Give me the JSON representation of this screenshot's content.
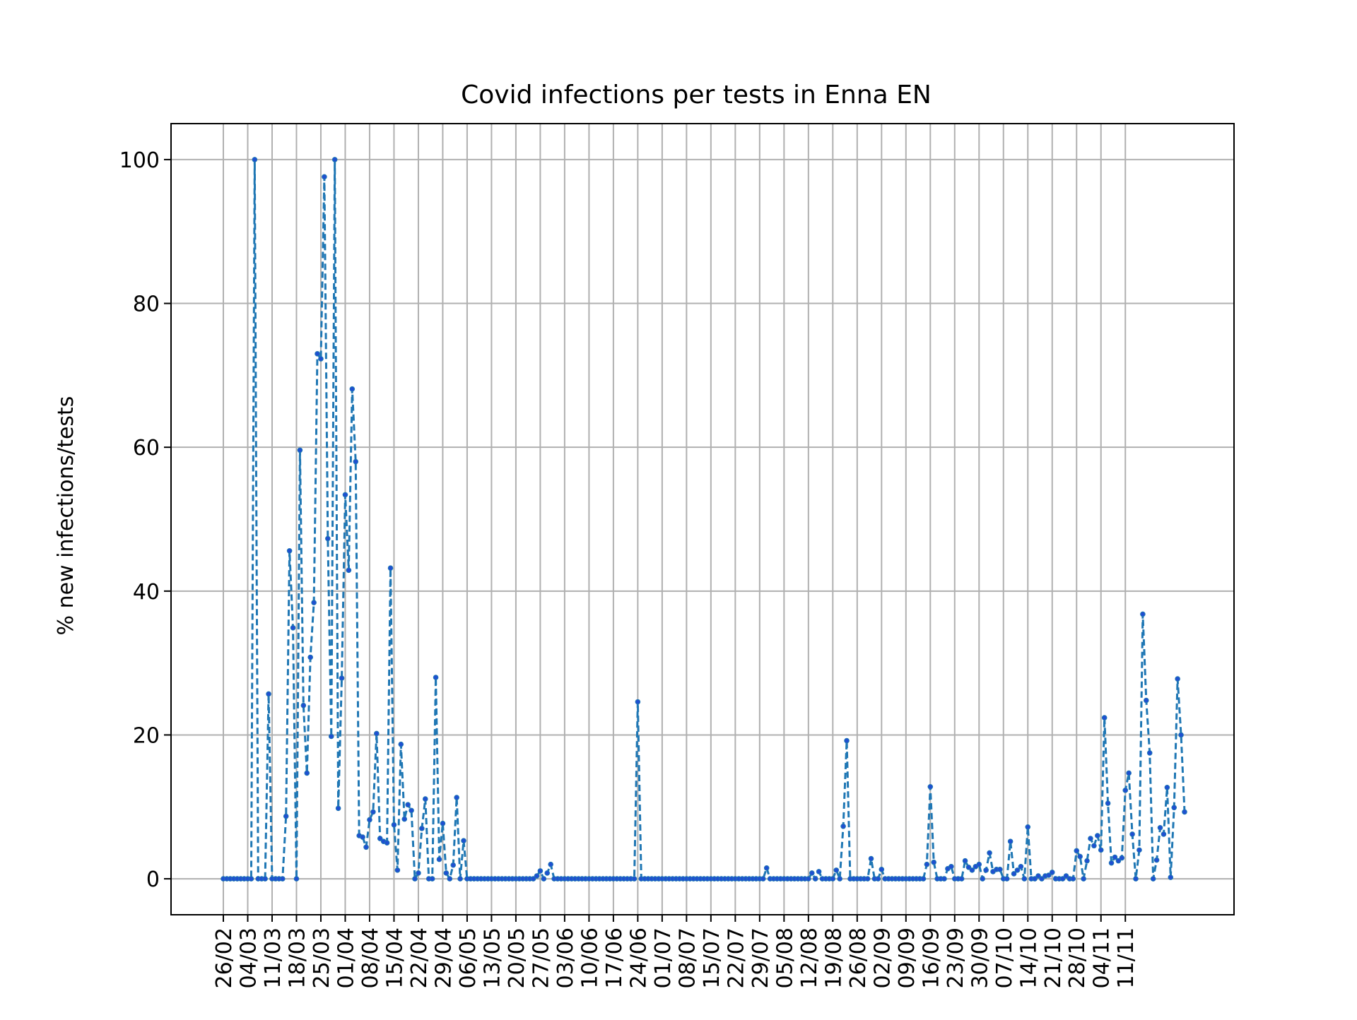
{
  "chart_data": {
    "type": "line",
    "title": "Covid infections per tests in Enna EN",
    "xlabel": "",
    "ylabel": "% new infections/tests",
    "ylim": [
      -5,
      105
    ],
    "yticks": [
      0,
      20,
      40,
      60,
      80,
      100
    ],
    "grid": true,
    "line_color": "#1f77b4",
    "marker_color": "#1f4fd1",
    "line_style": "dashed",
    "x_tick_labels": [
      "26/02",
      "04/03",
      "11/03",
      "18/03",
      "25/03",
      "01/04",
      "08/04",
      "15/04",
      "22/04",
      "29/04",
      "06/05",
      "13/05",
      "20/05",
      "27/05",
      "03/06",
      "10/06",
      "17/06",
      "24/06",
      "01/07",
      "08/07",
      "15/07",
      "22/07",
      "29/07",
      "05/08",
      "12/08",
      "19/08",
      "26/08",
      "02/09",
      "09/09",
      "16/09",
      "23/09",
      "30/09",
      "07/10",
      "14/10",
      "21/10",
      "28/10",
      "04/11",
      "11/11"
    ],
    "series": [
      {
        "values": [
          0,
          0,
          0,
          0,
          0,
          0,
          0,
          0,
          0,
          100,
          0,
          0,
          0,
          25.7,
          0,
          0,
          0,
          0,
          8.7,
          45.6,
          34.9,
          0,
          59.6,
          24.1,
          14.7,
          30.8,
          38.4,
          73,
          72.3,
          97.6,
          47.3,
          19.8,
          100,
          9.8,
          27.9,
          53.4,
          42.9,
          68.1,
          58,
          6,
          5.8,
          4.4,
          8.2,
          9.3,
          20.2,
          5.6,
          5.2,
          5,
          43.2,
          7.5,
          1.2,
          18.7,
          8.3,
          10.3,
          9.5,
          0,
          0.8,
          7,
          11.1,
          0,
          0,
          28,
          2.7,
          7.7,
          0.8,
          0,
          1.9,
          11.3,
          0,
          5.3,
          0,
          0,
          0,
          0,
          0,
          0,
          0,
          0,
          0,
          0,
          0,
          0,
          0,
          0,
          0,
          0,
          0,
          0,
          0,
          0,
          0.4,
          1.1,
          0,
          0.8,
          2,
          0,
          0,
          0,
          0,
          0,
          0,
          0,
          0,
          0,
          0,
          0,
          0,
          0,
          0,
          0,
          0,
          0,
          0,
          0,
          0,
          0,
          0,
          0,
          0,
          24.6,
          0,
          0,
          0,
          0,
          0,
          0,
          0,
          0,
          0,
          0,
          0,
          0,
          0,
          0,
          0,
          0,
          0,
          0,
          0,
          0,
          0,
          0,
          0,
          0,
          0,
          0,
          0,
          0,
          0,
          0,
          0,
          0,
          0,
          0,
          0,
          0,
          1.5,
          0,
          0,
          0,
          0,
          0,
          0,
          0,
          0,
          0,
          0,
          0,
          0,
          0.8,
          0,
          1,
          0,
          0,
          0,
          0,
          1.2,
          0,
          7.3,
          19.2,
          0,
          0,
          0,
          0,
          0,
          0,
          2.8,
          0,
          0,
          1.3,
          0,
          0,
          0,
          0,
          0,
          0,
          0,
          0,
          0,
          0,
          0,
          0,
          2,
          12.8,
          2.3,
          0,
          0,
          0,
          1.4,
          1.7,
          0,
          0,
          0,
          2.5,
          1.6,
          1.2,
          1.7,
          2,
          0,
          1.2,
          3.6,
          1,
          1.3,
          1.3,
          0,
          0,
          5.2,
          0.7,
          1.2,
          1.7,
          0,
          7.2,
          0,
          0,
          0.4,
          0,
          0.4,
          0.5,
          0.9,
          0,
          0,
          0,
          0.4,
          0,
          0,
          3.9,
          3.1,
          0,
          2.5,
          5.6,
          4.6,
          6,
          4,
          22.4,
          10.5,
          2.2,
          3,
          2.5,
          2.9,
          12.3,
          14.7,
          6.2,
          0,
          4,
          36.8,
          24.8,
          17.5,
          0,
          2.6,
          7.1,
          6.2,
          12.7,
          0.2,
          9.9,
          27.8,
          20,
          9.3
        ]
      }
    ]
  }
}
